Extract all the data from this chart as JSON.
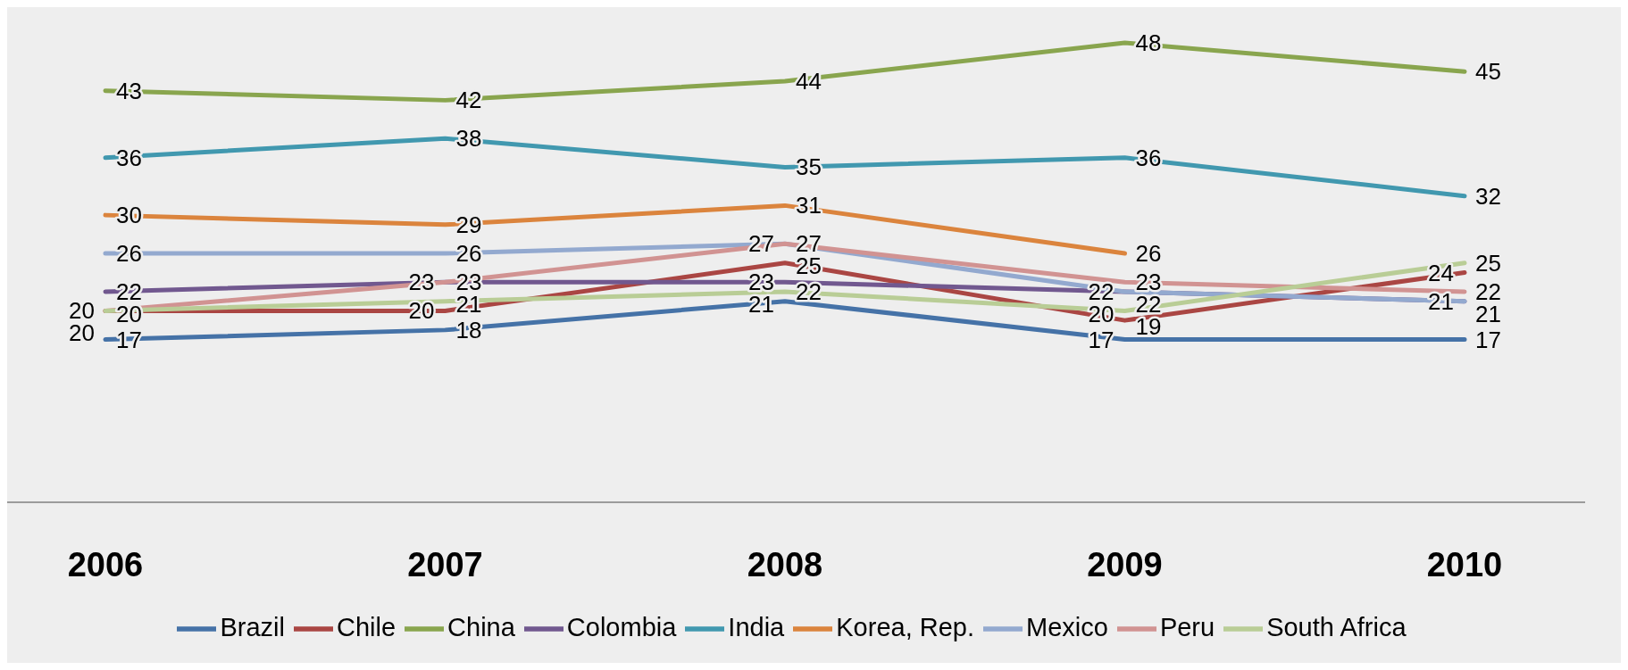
{
  "chart_data": {
    "type": "line",
    "categories": [
      "2006",
      "2007",
      "2008",
      "2009",
      "2010"
    ],
    "data_labels": true,
    "legend": "bottom",
    "grid": false,
    "marker": "none",
    "line_style": "solid",
    "series": [
      {
        "name": "Brazil",
        "color": "#4572a7",
        "values": [
          17,
          18,
          21,
          17,
          17
        ]
      },
      {
        "name": "Chile",
        "color": "#aa4643",
        "values": [
          20,
          20,
          25,
          19,
          24
        ]
      },
      {
        "name": "China",
        "color": "#89a54e",
        "values": [
          43,
          42,
          44,
          48,
          45
        ]
      },
      {
        "name": "Colombia",
        "color": "#71588f",
        "values": [
          22,
          23,
          23,
          22,
          21
        ]
      },
      {
        "name": "India",
        "color": "#4198af",
        "values": [
          36,
          38,
          35,
          36,
          32
        ]
      },
      {
        "name": "Korea, Rep.",
        "color": "#db843d",
        "values": [
          30,
          29,
          31,
          26,
          null
        ]
      },
      {
        "name": "Mexico",
        "color": "#93a9cf",
        "values": [
          26,
          26,
          27,
          22,
          21
        ]
      },
      {
        "name": "Peru",
        "color": "#d19392",
        "values": [
          20,
          23,
          27,
          23,
          22
        ]
      },
      {
        "name": "South Africa",
        "color": "#b9cd96",
        "values": [
          20,
          21,
          22,
          20,
          25
        ]
      }
    ]
  }
}
